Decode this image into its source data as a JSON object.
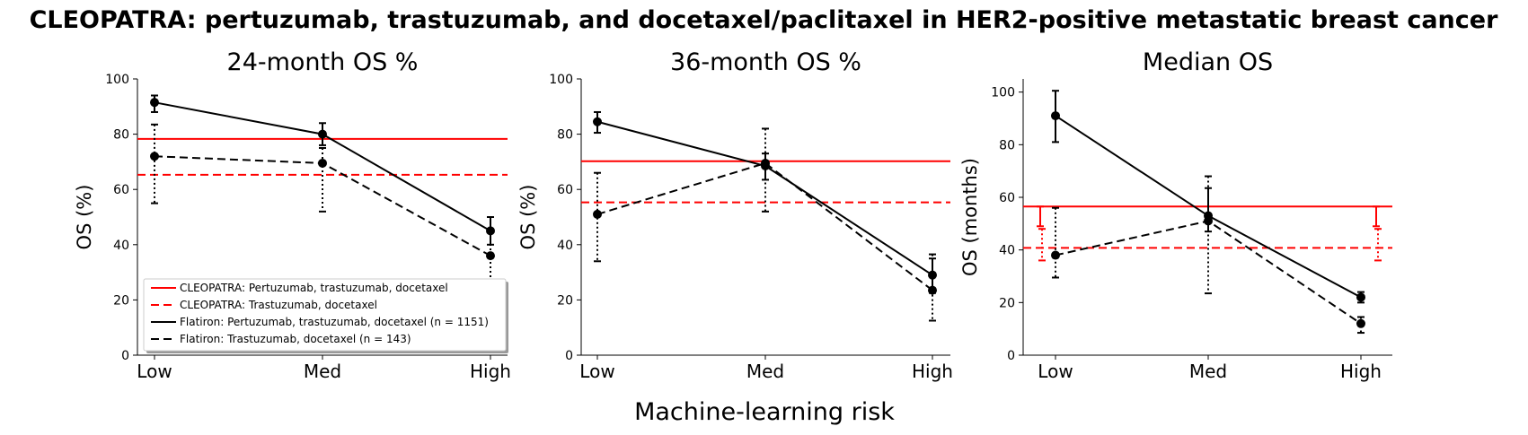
{
  "figure": {
    "suptitle": "CLEOPATRA: pertuzumab, trastuzumab, and docetaxel/paclitaxel in HER2-positive metastatic breast cancer",
    "shared_xlabel": "Machine-learning risk"
  },
  "legend": {
    "entries": [
      {
        "label": "CLEOPATRA: Pertuzumab, trastuzumab, docetaxel",
        "color": "#ff0000",
        "dash": "solid"
      },
      {
        "label": "CLEOPATRA: Trastuzumab, docetaxel",
        "color": "#ff0000",
        "dash": "dashed"
      },
      {
        "label": "Flatiron: Pertuzumab, trastuzumab, docetaxel (n = 1151)",
        "color": "#000000",
        "dash": "solid"
      },
      {
        "label": "Flatiron: Trastuzumab, docetaxel (n = 143)",
        "color": "#000000",
        "dash": "dashed"
      }
    ]
  },
  "chart_data": [
    {
      "type": "line",
      "title": "24-month OS %",
      "xlabel": "",
      "ylabel": "OS (%)",
      "categories": [
        "Low",
        "Med",
        "High"
      ],
      "ylim": [
        0,
        100
      ],
      "yticks": [
        0,
        20,
        40,
        60,
        80,
        100
      ],
      "legend_position": "lower-left",
      "series": [
        {
          "name": "Flatiron: Pertuzumab, trastuzumab, docetaxel (n = 1151)",
          "values": [
            91.5,
            80,
            45
          ],
          "err_low": [
            88,
            76,
            40
          ],
          "err_high": [
            94,
            84,
            50
          ],
          "color": "#000000",
          "dash": "solid",
          "errstyle": "solid"
        },
        {
          "name": "Flatiron: Trastuzumab, docetaxel (n = 143)",
          "values": [
            72,
            69.5,
            36
          ],
          "err_low": [
            55,
            52,
            27
          ],
          "err_high": [
            83.5,
            75,
            50
          ],
          "color": "#000000",
          "dash": "dashed",
          "errstyle": "dotted"
        }
      ],
      "reference_lines": [
        {
          "name": "CLEOPATRA: Pertuzumab, trastuzumab, docetaxel",
          "value": 78.3,
          "color": "#ff0000",
          "dash": "solid"
        },
        {
          "name": "CLEOPATRA: Trastuzumab, docetaxel",
          "value": 65.3,
          "color": "#ff0000",
          "dash": "dashed"
        }
      ]
    },
    {
      "type": "line",
      "title": "36-month OS %",
      "xlabel": "",
      "ylabel": "OS (%)",
      "categories": [
        "Low",
        "Med",
        "High"
      ],
      "ylim": [
        0,
        100
      ],
      "yticks": [
        0,
        20,
        40,
        60,
        80,
        100
      ],
      "series": [
        {
          "name": "Flatiron: Pertuzumab, trastuzumab, docetaxel (n = 1151)",
          "values": [
            84.5,
            68.5,
            29
          ],
          "err_low": [
            80.5,
            63.5,
            22.5
          ],
          "err_high": [
            88,
            73,
            35
          ],
          "color": "#000000",
          "dash": "solid",
          "errstyle": "solid"
        },
        {
          "name": "Flatiron: Trastuzumab, docetaxel (n = 143)",
          "values": [
            51,
            69.5,
            23.5
          ],
          "err_low": [
            34,
            52,
            12.5
          ],
          "err_high": [
            66,
            82,
            36.5
          ],
          "color": "#000000",
          "dash": "dashed",
          "errstyle": "dotted"
        }
      ],
      "reference_lines": [
        {
          "name": "CLEOPATRA: Pertuzumab, trastuzumab, docetaxel",
          "value": 70.2,
          "color": "#ff0000",
          "dash": "solid"
        },
        {
          "name": "CLEOPATRA: Trastuzumab, docetaxel",
          "value": 55.3,
          "color": "#ff0000",
          "dash": "dashed"
        }
      ]
    },
    {
      "type": "line",
      "title": "Median OS",
      "xlabel": "",
      "ylabel": "OS (months)",
      "categories": [
        "Low",
        "Med",
        "High"
      ],
      "ylim": [
        0,
        105
      ],
      "yticks": [
        0,
        20,
        40,
        60,
        80,
        100
      ],
      "series": [
        {
          "name": "Flatiron: Pertuzumab, trastuzumab, docetaxel (n = 1151)",
          "values": [
            91,
            53,
            22
          ],
          "err_low": [
            81,
            47,
            20
          ],
          "err_high": [
            100.5,
            63.5,
            24
          ],
          "color": "#000000",
          "dash": "solid",
          "errstyle": "solid"
        },
        {
          "name": "Flatiron: Trastuzumab, docetaxel (n = 143)",
          "values": [
            38,
            51,
            12
          ],
          "err_low": [
            29.5,
            23.5,
            8.5
          ],
          "err_high": [
            56,
            68,
            14.5
          ],
          "color": "#000000",
          "dash": "dashed",
          "errstyle": "dotted"
        }
      ],
      "reference_lines": [
        {
          "name": "CLEOPATRA: Pertuzumab, trastuzumab, docetaxel",
          "value": 56.5,
          "color": "#ff0000",
          "dash": "solid",
          "err_low": 49,
          "err_high": 56.5
        },
        {
          "name": "CLEOPATRA: Trastuzumab, docetaxel",
          "value": 40.8,
          "color": "#ff0000",
          "dash": "dashed",
          "err_low": 36,
          "err_high": 48
        }
      ]
    }
  ]
}
